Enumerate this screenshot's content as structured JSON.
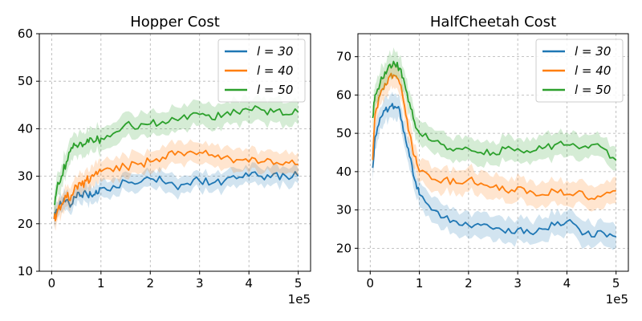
{
  "chart_data": [
    {
      "type": "line",
      "title": "Hopper Cost",
      "xlabel": "",
      "ylabel": "",
      "x_multiplier_label": "1e5",
      "xlim": [
        -0.25,
        5.25
      ],
      "ylim": [
        10,
        60
      ],
      "xticks": [
        0,
        1,
        2,
        3,
        4,
        5
      ],
      "yticks": [
        10,
        20,
        30,
        40,
        50,
        60
      ],
      "xtick_labels": [
        "0",
        "1",
        "2",
        "3",
        "4",
        "5"
      ],
      "ytick_labels": [
        "10",
        "20",
        "30",
        "40",
        "50",
        "60"
      ],
      "grid": true,
      "legend_position": "top-right",
      "x": [
        0.05,
        0.1,
        0.2,
        0.3,
        0.4,
        0.5,
        0.6,
        0.7,
        0.8,
        0.9,
        1.0,
        1.25,
        1.5,
        1.75,
        2.0,
        2.25,
        2.5,
        2.75,
        3.0,
        3.25,
        3.5,
        3.75,
        4.0,
        4.25,
        4.5,
        4.75,
        5.0
      ],
      "series": [
        {
          "name": "l = 30",
          "label": "l = 30",
          "color": "#1f77b4",
          "band": 1.5,
          "values": [
            21,
            23,
            24,
            25,
            24,
            25.5,
            26,
            26.5,
            26,
            27,
            27.5,
            28,
            29,
            28.5,
            29.5,
            29,
            28,
            28.5,
            29,
            28.5,
            29,
            29.5,
            30,
            30,
            30.5,
            30,
            30
          ]
        },
        {
          "name": "l = 40",
          "label": "l = 40",
          "color": "#ff7f0e",
          "band": 1.8,
          "values": [
            21,
            22,
            24,
            25.5,
            26,
            28,
            28,
            29,
            30,
            31,
            31,
            31,
            32,
            32.5,
            33,
            34,
            34.5,
            35,
            35,
            34.5,
            34,
            33.5,
            33,
            33,
            32.5,
            33,
            32.5
          ]
        },
        {
          "name": "l = 50",
          "label": "l = 50",
          "color": "#2ca02c",
          "band": 2.0,
          "values": [
            24,
            27,
            30,
            33,
            36,
            36.5,
            37,
            37,
            38,
            37.5,
            38,
            39,
            41,
            40,
            41,
            41.5,
            42,
            42,
            43,
            42,
            43,
            43.5,
            44,
            44,
            43.5,
            43,
            43.5
          ]
        }
      ]
    },
    {
      "type": "line",
      "title": "HalfCheetah Cost",
      "xlabel": "",
      "ylabel": "",
      "x_multiplier_label": "1e5",
      "xlim": [
        -0.25,
        5.25
      ],
      "ylim": [
        14,
        76
      ],
      "xticks": [
        0,
        1,
        2,
        3,
        4,
        5
      ],
      "yticks": [
        20,
        30,
        40,
        50,
        60,
        70
      ],
      "xtick_labels": [
        "0",
        "1",
        "2",
        "3",
        "4",
        "5"
      ],
      "ytick_labels": [
        "20",
        "30",
        "40",
        "50",
        "60",
        "70"
      ],
      "grid": true,
      "legend_position": "top-right",
      "x": [
        0.05,
        0.1,
        0.2,
        0.3,
        0.4,
        0.5,
        0.6,
        0.7,
        0.8,
        0.9,
        1.0,
        1.25,
        1.5,
        1.75,
        2.0,
        2.25,
        2.5,
        2.75,
        3.0,
        3.25,
        3.5,
        3.75,
        4.0,
        4.25,
        4.5,
        4.75,
        5.0
      ],
      "series": [
        {
          "name": "l = 30",
          "label": "l = 30",
          "color": "#1f77b4",
          "band": 2.5,
          "values": [
            41,
            49,
            54,
            56,
            57,
            57,
            56,
            50,
            44,
            38,
            34,
            30,
            28,
            27,
            26,
            26,
            25,
            24,
            25,
            24,
            25,
            26,
            27,
            25,
            23,
            24,
            23
          ]
        },
        {
          "name": "l = 40",
          "label": "l = 40",
          "color": "#ff7f0e",
          "band": 2.5,
          "values": [
            43,
            55,
            60,
            63,
            65,
            65,
            63,
            57,
            50,
            44,
            40,
            38,
            38,
            37,
            38,
            37,
            36,
            35,
            36,
            35,
            34,
            35,
            34,
            35,
            33,
            34,
            35
          ]
        },
        {
          "name": "l = 50",
          "label": "l = 50",
          "color": "#2ca02c",
          "band": 2.5,
          "values": [
            54,
            60,
            63,
            66,
            68,
            68,
            67,
            63,
            58,
            53,
            50,
            48,
            47,
            46,
            46,
            45,
            45,
            46,
            46,
            45,
            46,
            47,
            47,
            46,
            47,
            46,
            43
          ]
        }
      ]
    }
  ]
}
